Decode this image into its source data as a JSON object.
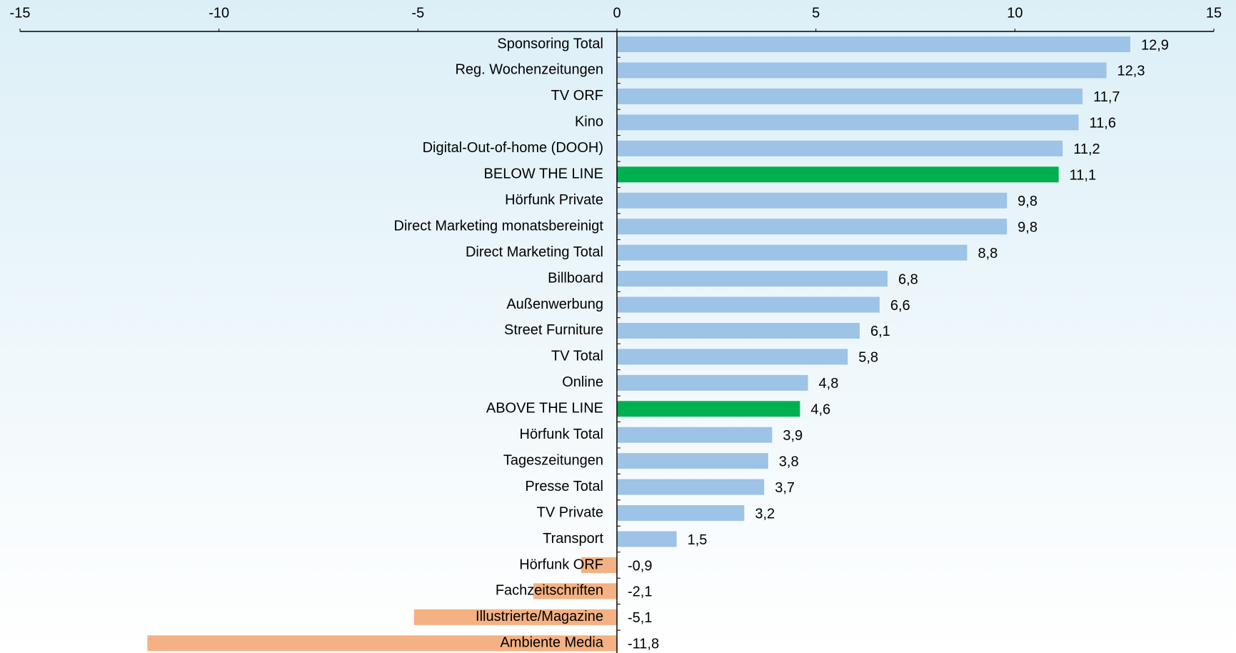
{
  "chart_data": {
    "type": "hbar",
    "categories": [
      "Sponsoring Total",
      "Reg. Wochenzeitungen",
      "TV ORF",
      "Kino",
      "Digital-Out-of-home (DOOH)",
      "BELOW THE LINE",
      "Hörfunk Private",
      "Direct Marketing monatsbereinigt",
      "Direct Marketing Total",
      "Billboard",
      "Außenwerbung",
      "Street Furniture",
      "TV Total",
      "Online",
      "ABOVE THE LINE",
      "Hörfunk Total",
      "Tageszeitungen",
      "Presse Total",
      "TV Private",
      "Transport",
      "Hörfunk ORF",
      "Fachzeitschriften",
      "Illustrierte/Magazine",
      "Ambiente Media"
    ],
    "values": [
      12.9,
      12.3,
      11.7,
      11.6,
      11.2,
      11.1,
      9.8,
      9.8,
      8.8,
      6.8,
      6.6,
      6.1,
      5.8,
      4.8,
      4.6,
      3.9,
      3.8,
      3.7,
      3.2,
      1.5,
      -0.9,
      -2.1,
      -5.1,
      -11.8
    ],
    "value_labels": [
      "12,9",
      "12,3",
      "11,7",
      "11,6",
      "11,2",
      "11,1",
      "9,8",
      "9,8",
      "8,8",
      "6,8",
      "6,6",
      "6,1",
      "5,8",
      "4,8",
      "4,6",
      "3,9",
      "3,8",
      "3,7",
      "3,2",
      "1,5",
      "-0,9",
      "-2,1",
      "-5,1",
      "-11,8"
    ],
    "colors": [
      "#9dc3e6",
      "#9dc3e6",
      "#9dc3e6",
      "#9dc3e6",
      "#9dc3e6",
      "#00b050",
      "#9dc3e6",
      "#9dc3e6",
      "#9dc3e6",
      "#9dc3e6",
      "#9dc3e6",
      "#9dc3e6",
      "#9dc3e6",
      "#9dc3e6",
      "#00b050",
      "#9dc3e6",
      "#9dc3e6",
      "#9dc3e6",
      "#9dc3e6",
      "#9dc3e6",
      "#f4b183",
      "#f4b183",
      "#f4b183",
      "#f4b183"
    ],
    "xlim": [
      -15,
      15
    ],
    "xticks": [
      -15,
      -10,
      -5,
      0,
      5,
      10,
      15
    ]
  }
}
